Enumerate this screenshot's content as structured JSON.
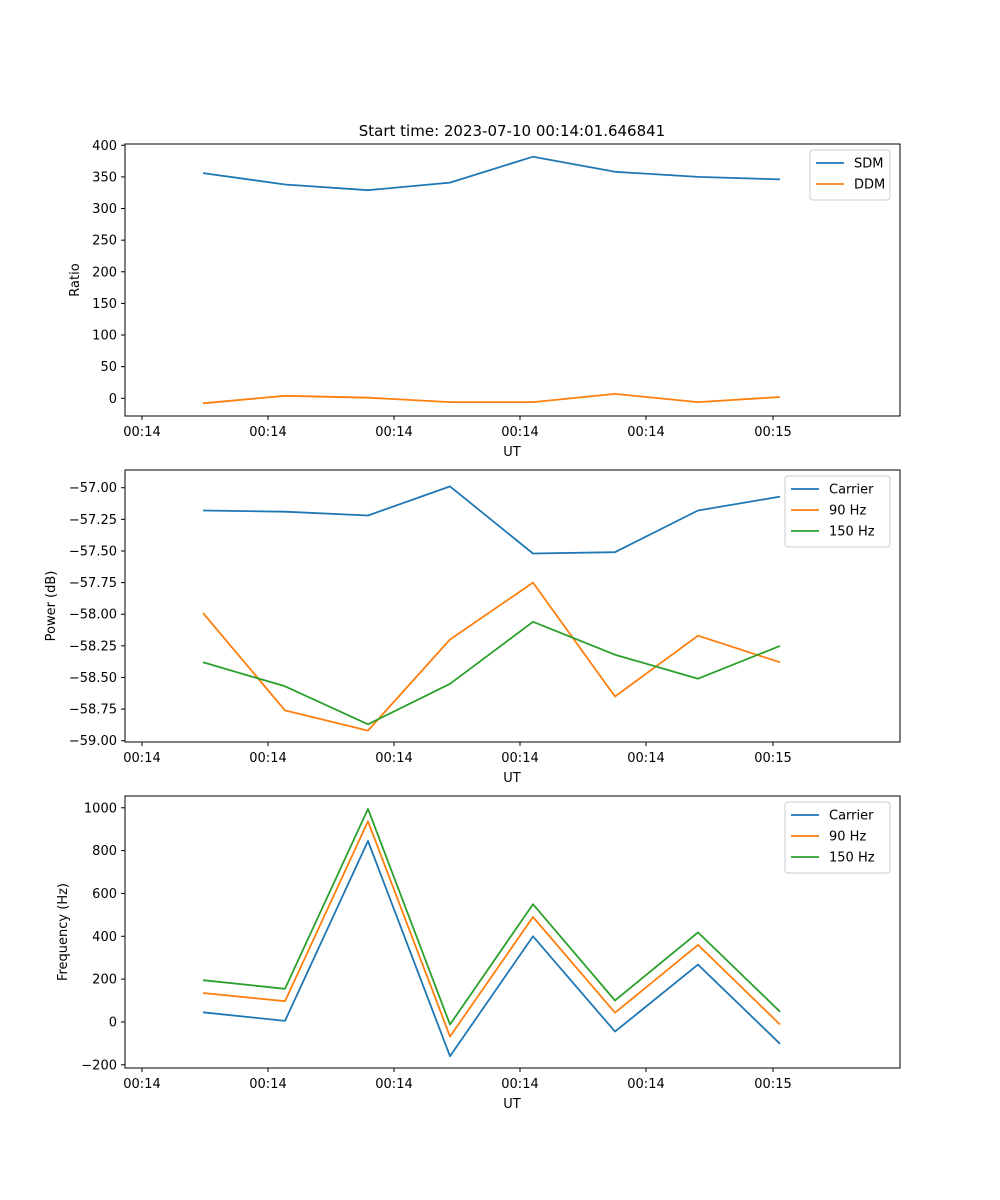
{
  "figure": {
    "title": "Start time: 2023-07-10 00:14:01.646841"
  },
  "colors": {
    "blue": "#1f77b4",
    "orange": "#ff7f0e",
    "green": "#2ca02c"
  },
  "chart_data": [
    {
      "type": "line",
      "title": "Start time: 2023-07-10 00:14:01.646841",
      "xlabel": "UT",
      "ylabel": "Ratio",
      "x_tick_labels": [
        "00:14",
        "00:14",
        "00:14",
        "00:14",
        "00:14",
        "00:15"
      ],
      "y_ticks": [
        0,
        50,
        100,
        150,
        200,
        250,
        300,
        350,
        400
      ],
      "ylim": [
        -28,
        402
      ],
      "legend_position": "top-right",
      "series": [
        {
          "name": "SDM",
          "color": "#1f77b4",
          "values": [
            356,
            338,
            329,
            341,
            382,
            358,
            350,
            346
          ]
        },
        {
          "name": "DDM",
          "color": "#ff7f0e",
          "values": [
            -8,
            4,
            1,
            -6,
            -6,
            7,
            -6,
            2
          ]
        }
      ]
    },
    {
      "type": "line",
      "title": "",
      "xlabel": "UT",
      "ylabel": "Power (dB)",
      "x_tick_labels": [
        "00:14",
        "00:14",
        "00:14",
        "00:14",
        "00:14",
        "00:15"
      ],
      "y_ticks": [
        -57.0,
        -57.25,
        -57.5,
        -57.75,
        -58.0,
        -58.25,
        -58.5,
        -58.75,
        -59.0
      ],
      "y_tick_labels": [
        "−57.00",
        "−57.25",
        "−57.50",
        "−57.75",
        "−58.00",
        "−58.25",
        "−58.50",
        "−58.75",
        "−59.00"
      ],
      "ylim": [
        -59.01,
        -56.86
      ],
      "legend_position": "top-right",
      "series": [
        {
          "name": "Carrier",
          "color": "#1f77b4",
          "values": [
            -57.18,
            -57.19,
            -57.22,
            -56.99,
            -57.52,
            -57.51,
            -57.18,
            -57.07
          ]
        },
        {
          "name": "90 Hz",
          "color": "#ff7f0e",
          "values": [
            -57.99,
            -58.76,
            -58.92,
            -58.2,
            -57.75,
            -58.65,
            -58.17,
            -58.38
          ]
        },
        {
          "name": "150 Hz",
          "color": "#2ca02c",
          "values": [
            -58.38,
            -58.57,
            -58.87,
            -58.55,
            -58.06,
            -58.32,
            -58.51,
            -58.25
          ]
        }
      ]
    },
    {
      "type": "line",
      "title": "",
      "xlabel": "UT",
      "ylabel": "Frequency (Hz)",
      "x_tick_labels": [
        "00:14",
        "00:14",
        "00:14",
        "00:14",
        "00:14",
        "00:15"
      ],
      "y_ticks": [
        -200,
        0,
        200,
        400,
        600,
        800,
        1000
      ],
      "y_tick_labels": [
        "−200",
        "0",
        "200",
        "400",
        "600",
        "800",
        "1000"
      ],
      "ylim": [
        -215,
        1055
      ],
      "legend_position": "top-right",
      "series": [
        {
          "name": "Carrier",
          "color": "#1f77b4",
          "values": [
            45,
            5,
            845,
            -160,
            400,
            -45,
            268,
            -102
          ]
        },
        {
          "name": "90 Hz",
          "color": "#ff7f0e",
          "values": [
            135,
            97,
            937,
            -68,
            490,
            43,
            360,
            -12
          ]
        },
        {
          "name": "150 Hz",
          "color": "#2ca02c",
          "values": [
            195,
            155,
            995,
            -12,
            550,
            100,
            418,
            48
          ]
        }
      ]
    }
  ]
}
